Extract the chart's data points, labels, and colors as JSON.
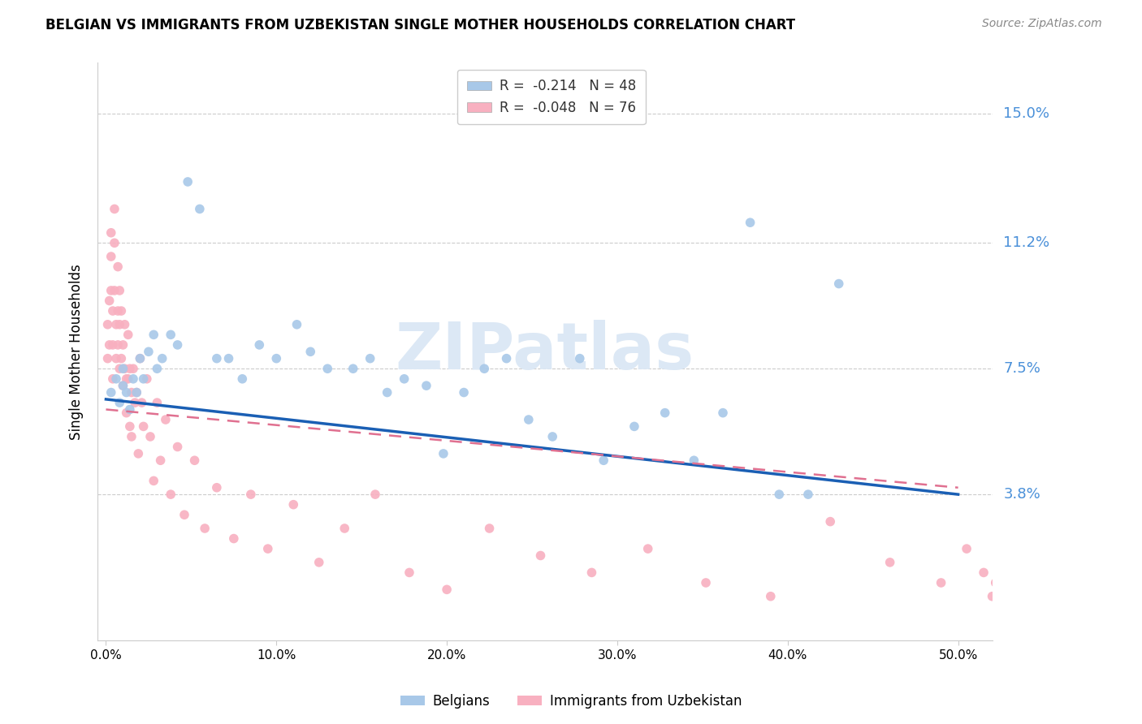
{
  "title": "BELGIAN VS IMMIGRANTS FROM UZBEKISTAN SINGLE MOTHER HOUSEHOLDS CORRELATION CHART",
  "source": "Source: ZipAtlas.com",
  "ylabel": "Single Mother Households",
  "xlabel_ticks": [
    "0.0%",
    "10.0%",
    "20.0%",
    "30.0%",
    "40.0%",
    "50.0%"
  ],
  "xlabel_vals": [
    0.0,
    0.1,
    0.2,
    0.3,
    0.4,
    0.5
  ],
  "ytick_labels": [
    "15.0%",
    "11.2%",
    "7.5%",
    "3.8%"
  ],
  "ytick_vals": [
    0.15,
    0.112,
    0.075,
    0.038
  ],
  "ylim": [
    -0.005,
    0.165
  ],
  "xlim": [
    -0.005,
    0.52
  ],
  "legend_entries": [
    {
      "label": "R =  -0.214   N = 48",
      "color": "#a8c4e0"
    },
    {
      "label": "R =  -0.048   N = 76",
      "color": "#f4a0b0"
    }
  ],
  "watermark": "ZIPatlas",
  "belgians_x": [
    0.003,
    0.006,
    0.008,
    0.01,
    0.01,
    0.012,
    0.014,
    0.016,
    0.018,
    0.02,
    0.022,
    0.025,
    0.028,
    0.03,
    0.033,
    0.038,
    0.042,
    0.048,
    0.055,
    0.065,
    0.072,
    0.08,
    0.09,
    0.1,
    0.112,
    0.12,
    0.13,
    0.145,
    0.155,
    0.165,
    0.175,
    0.188,
    0.198,
    0.21,
    0.222,
    0.235,
    0.248,
    0.262,
    0.278,
    0.292,
    0.31,
    0.328,
    0.345,
    0.362,
    0.378,
    0.395,
    0.412,
    0.43
  ],
  "belgians_y": [
    0.068,
    0.072,
    0.065,
    0.075,
    0.07,
    0.068,
    0.063,
    0.072,
    0.068,
    0.078,
    0.072,
    0.08,
    0.085,
    0.075,
    0.078,
    0.085,
    0.082,
    0.13,
    0.122,
    0.078,
    0.078,
    0.072,
    0.082,
    0.078,
    0.088,
    0.08,
    0.075,
    0.075,
    0.078,
    0.068,
    0.072,
    0.07,
    0.05,
    0.068,
    0.075,
    0.078,
    0.06,
    0.055,
    0.078,
    0.048,
    0.058,
    0.062,
    0.048,
    0.062,
    0.118,
    0.038,
    0.038,
    0.1
  ],
  "uzbek_x": [
    0.001,
    0.001,
    0.002,
    0.002,
    0.003,
    0.003,
    0.003,
    0.004,
    0.004,
    0.004,
    0.005,
    0.005,
    0.005,
    0.006,
    0.006,
    0.007,
    0.007,
    0.007,
    0.008,
    0.008,
    0.008,
    0.009,
    0.009,
    0.01,
    0.01,
    0.011,
    0.011,
    0.012,
    0.012,
    0.013,
    0.013,
    0.014,
    0.014,
    0.015,
    0.015,
    0.016,
    0.017,
    0.018,
    0.019,
    0.02,
    0.021,
    0.022,
    0.024,
    0.026,
    0.028,
    0.03,
    0.032,
    0.035,
    0.038,
    0.042,
    0.046,
    0.052,
    0.058,
    0.065,
    0.075,
    0.085,
    0.095,
    0.11,
    0.125,
    0.14,
    0.158,
    0.178,
    0.2,
    0.225,
    0.255,
    0.285,
    0.318,
    0.352,
    0.39,
    0.425,
    0.46,
    0.49,
    0.505,
    0.515,
    0.52,
    0.522
  ],
  "uzbek_y": [
    0.088,
    0.078,
    0.095,
    0.082,
    0.115,
    0.108,
    0.098,
    0.092,
    0.082,
    0.072,
    0.122,
    0.112,
    0.098,
    0.088,
    0.078,
    0.105,
    0.092,
    0.082,
    0.098,
    0.088,
    0.075,
    0.092,
    0.078,
    0.082,
    0.07,
    0.088,
    0.075,
    0.072,
    0.062,
    0.085,
    0.072,
    0.075,
    0.058,
    0.068,
    0.055,
    0.075,
    0.065,
    0.068,
    0.05,
    0.078,
    0.065,
    0.058,
    0.072,
    0.055,
    0.042,
    0.065,
    0.048,
    0.06,
    0.038,
    0.052,
    0.032,
    0.048,
    0.028,
    0.04,
    0.025,
    0.038,
    0.022,
    0.035,
    0.018,
    0.028,
    0.038,
    0.015,
    0.01,
    0.028,
    0.02,
    0.015,
    0.022,
    0.012,
    0.008,
    0.03,
    0.018,
    0.012,
    0.022,
    0.015,
    0.008,
    0.012
  ],
  "belgian_color": "#a8c8e8",
  "uzbek_color": "#f8b0c0",
  "belgian_line_color": "#1a5fb4",
  "uzbek_line_color": "#e07090",
  "grid_color": "#cccccc",
  "axis_color": "#4a90d9",
  "background_color": "#ffffff",
  "title_fontsize": 12,
  "watermark_color": "#dce8f5",
  "scatter_size": 70,
  "belgian_line_x": [
    0.0,
    0.5
  ],
  "belgian_line_y": [
    0.066,
    0.038
  ],
  "uzbek_line_x": [
    0.0,
    0.5
  ],
  "uzbek_line_y": [
    0.063,
    0.04
  ]
}
